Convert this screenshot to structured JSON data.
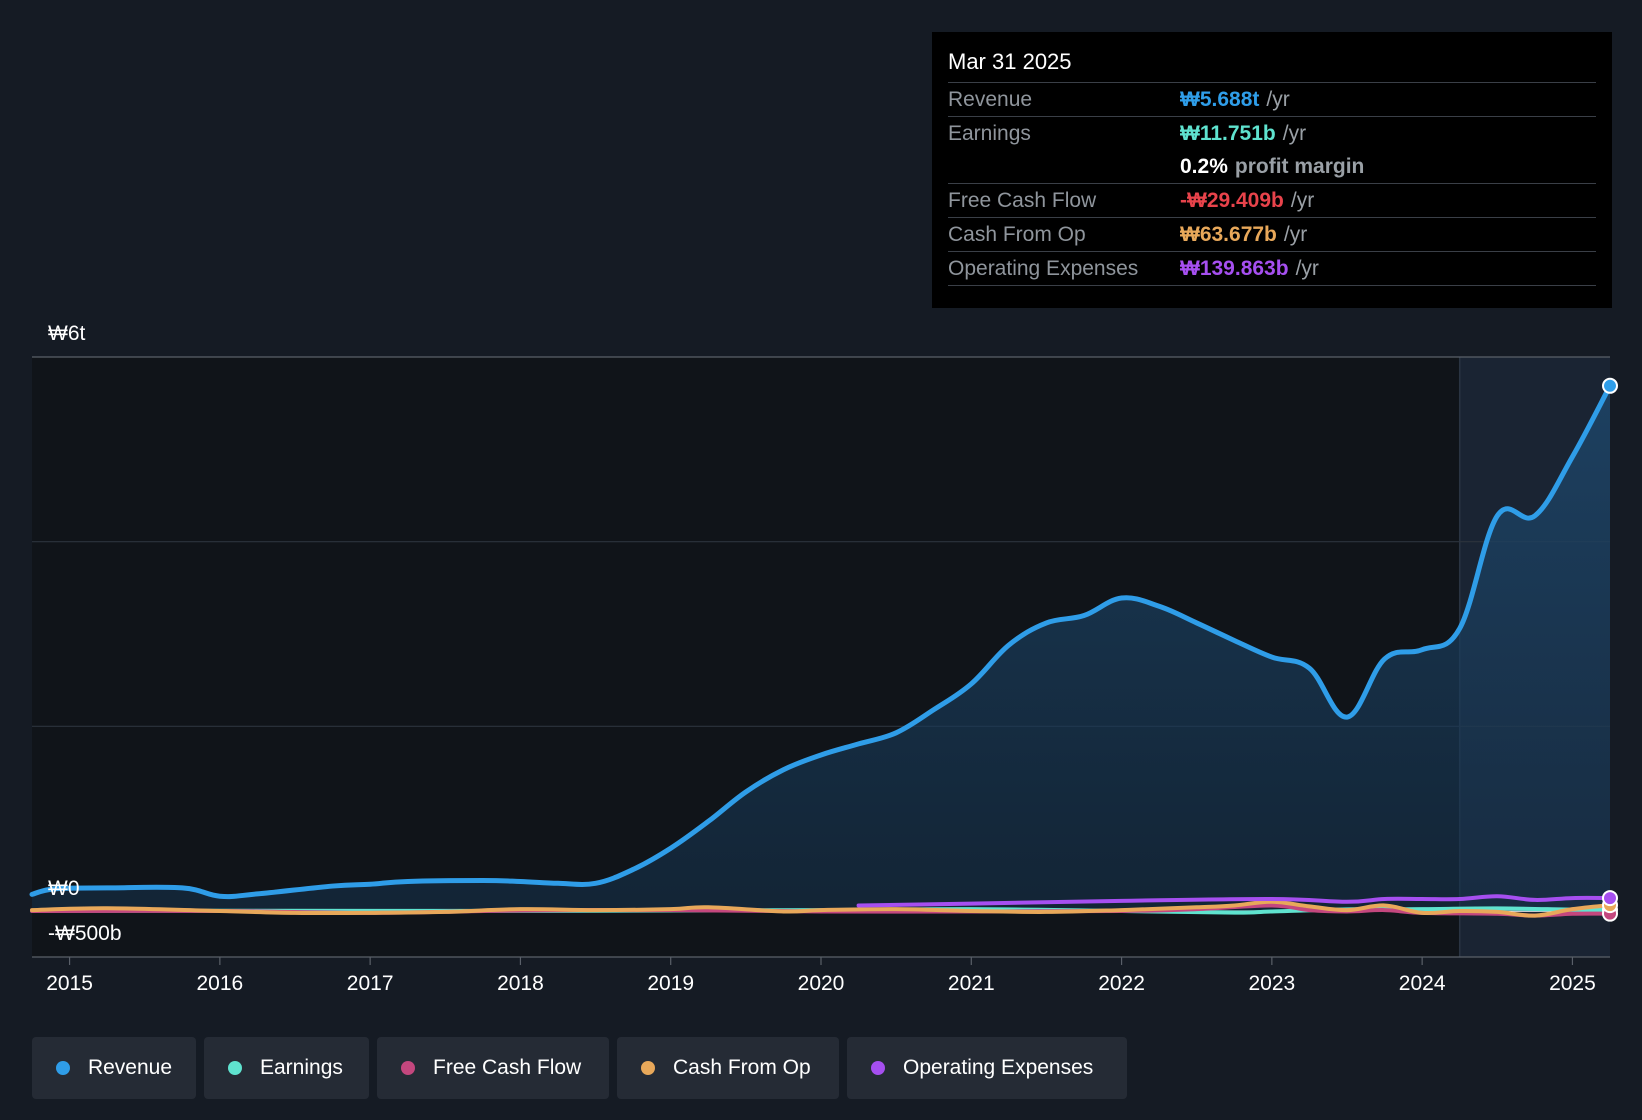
{
  "tooltip": {
    "date": "Mar 31 2025",
    "rows": [
      {
        "label": "Revenue",
        "value": "₩5.688t",
        "unit": "/yr",
        "color": "#2f9de8"
      },
      {
        "label": "Earnings",
        "value": "₩11.751b",
        "unit": "/yr",
        "color": "#5fe3cf"
      },
      {
        "label": "",
        "value": "0.2%",
        "unit": "profit margin",
        "color": "#ffffff"
      },
      {
        "label": "Free Cash Flow",
        "value": "-₩29.409b",
        "unit": "/yr",
        "color": "#e8434b"
      },
      {
        "label": "Cash From Op",
        "value": "₩63.677b",
        "unit": "/yr",
        "color": "#e8a85a"
      },
      {
        "label": "Operating Expenses",
        "value": "₩139.863b",
        "unit": "/yr",
        "color": "#a64ff0"
      }
    ]
  },
  "legend": [
    {
      "label": "Revenue",
      "color": "#2f9de8"
    },
    {
      "label": "Earnings",
      "color": "#5fe3cf"
    },
    {
      "label": "Free Cash Flow",
      "color": "#c4477e"
    },
    {
      "label": "Cash From Op",
      "color": "#e8a85a"
    },
    {
      "label": "Operating Expenses",
      "color": "#a64ff0"
    }
  ],
  "chart_data": {
    "type": "area",
    "y_top_label": "₩6t",
    "y_zero_label": "₩0",
    "y_bottom_label": "-₩500b",
    "ylim": [
      -500,
      6000
    ],
    "y_unit": "₩ billions",
    "x_ticks": [
      "2015",
      "2016",
      "2017",
      "2018",
      "2019",
      "2020",
      "2021",
      "2022",
      "2023",
      "2024",
      "2025"
    ],
    "xlim": [
      2014.75,
      2025.25
    ],
    "forecast_region_start": 2024.25,
    "series": [
      {
        "name": "Revenue",
        "color": "#2f9de8",
        "fill": true,
        "x": [
          2014.75,
          2014.9,
          2015.25,
          2015.75,
          2016.0,
          2016.25,
          2016.75,
          2017.0,
          2017.25,
          2017.75,
          2018.0,
          2018.25,
          2018.5,
          2018.75,
          2019.0,
          2019.25,
          2019.5,
          2019.75,
          2020.0,
          2020.25,
          2020.5,
          2020.75,
          2021.0,
          2021.25,
          2021.5,
          2021.75,
          2022.0,
          2022.25,
          2022.5,
          2022.75,
          2023.0,
          2023.25,
          2023.5,
          2023.75,
          2024.0,
          2024.25,
          2024.5,
          2024.75,
          2025.0,
          2025.25
        ],
        "values": [
          180,
          240,
          250,
          250,
          160,
          185,
          270,
          290,
          320,
          330,
          320,
          300,
          300,
          450,
          680,
          970,
          1290,
          1530,
          1690,
          1810,
          1930,
          2180,
          2460,
          2880,
          3120,
          3200,
          3390,
          3300,
          3120,
          2930,
          2750,
          2630,
          2100,
          2730,
          2830,
          3060,
          4280,
          4280,
          4920,
          5688
        ]
      },
      {
        "name": "Earnings",
        "color": "#5fe3cf",
        "x": [
          2014.75,
          2016.0,
          2018.0,
          2020.0,
          2021.0,
          2022.0,
          2022.75,
          2023.0,
          2023.5,
          2024.0,
          2024.5,
          2025.0,
          2025.25
        ],
        "values": [
          2,
          3,
          1,
          10,
          20,
          0,
          -18,
          -5,
          18,
          20,
          28,
          15,
          12
        ]
      },
      {
        "name": "Free Cash Flow",
        "color": "#c4477e",
        "x": [
          2014.75,
          2016.0,
          2017.0,
          2018.0,
          2019.0,
          2020.0,
          2021.0,
          2022.0,
          2022.5,
          2023.0,
          2023.25,
          2023.5,
          2023.75,
          2024.0,
          2024.5,
          2024.75,
          2025.0,
          2025.25
        ],
        "values": [
          0,
          0,
          -20,
          5,
          10,
          -5,
          -5,
          0,
          20,
          60,
          10,
          -5,
          10,
          -20,
          -30,
          -50,
          -30,
          -29
        ]
      },
      {
        "name": "Cash From Op",
        "color": "#e8a85a",
        "x": [
          2014.75,
          2015.25,
          2016.0,
          2016.5,
          2017.0,
          2017.5,
          2018.0,
          2018.5,
          2019.0,
          2019.25,
          2019.75,
          2020.0,
          2020.5,
          2021.0,
          2021.5,
          2022.0,
          2022.5,
          2022.75,
          2023.0,
          2023.25,
          2023.5,
          2023.75,
          2024.0,
          2024.25,
          2024.5,
          2024.75,
          2025.0,
          2025.25
        ],
        "values": [
          10,
          30,
          0,
          -20,
          -20,
          -10,
          20,
          10,
          20,
          40,
          -5,
          10,
          20,
          0,
          -10,
          10,
          40,
          60,
          100,
          50,
          10,
          60,
          -20,
          0,
          -10,
          -50,
          20,
          64
        ]
      },
      {
        "name": "Operating Expenses",
        "color": "#a64ff0",
        "x": [
          2020.25,
          2021.0,
          2022.0,
          2023.0,
          2023.5,
          2023.75,
          2024.0,
          2024.25,
          2024.5,
          2024.75,
          2025.0,
          2025.25
        ],
        "values": [
          60,
          80,
          110,
          130,
          100,
          130,
          130,
          130,
          160,
          120,
          140,
          140
        ]
      }
    ]
  }
}
